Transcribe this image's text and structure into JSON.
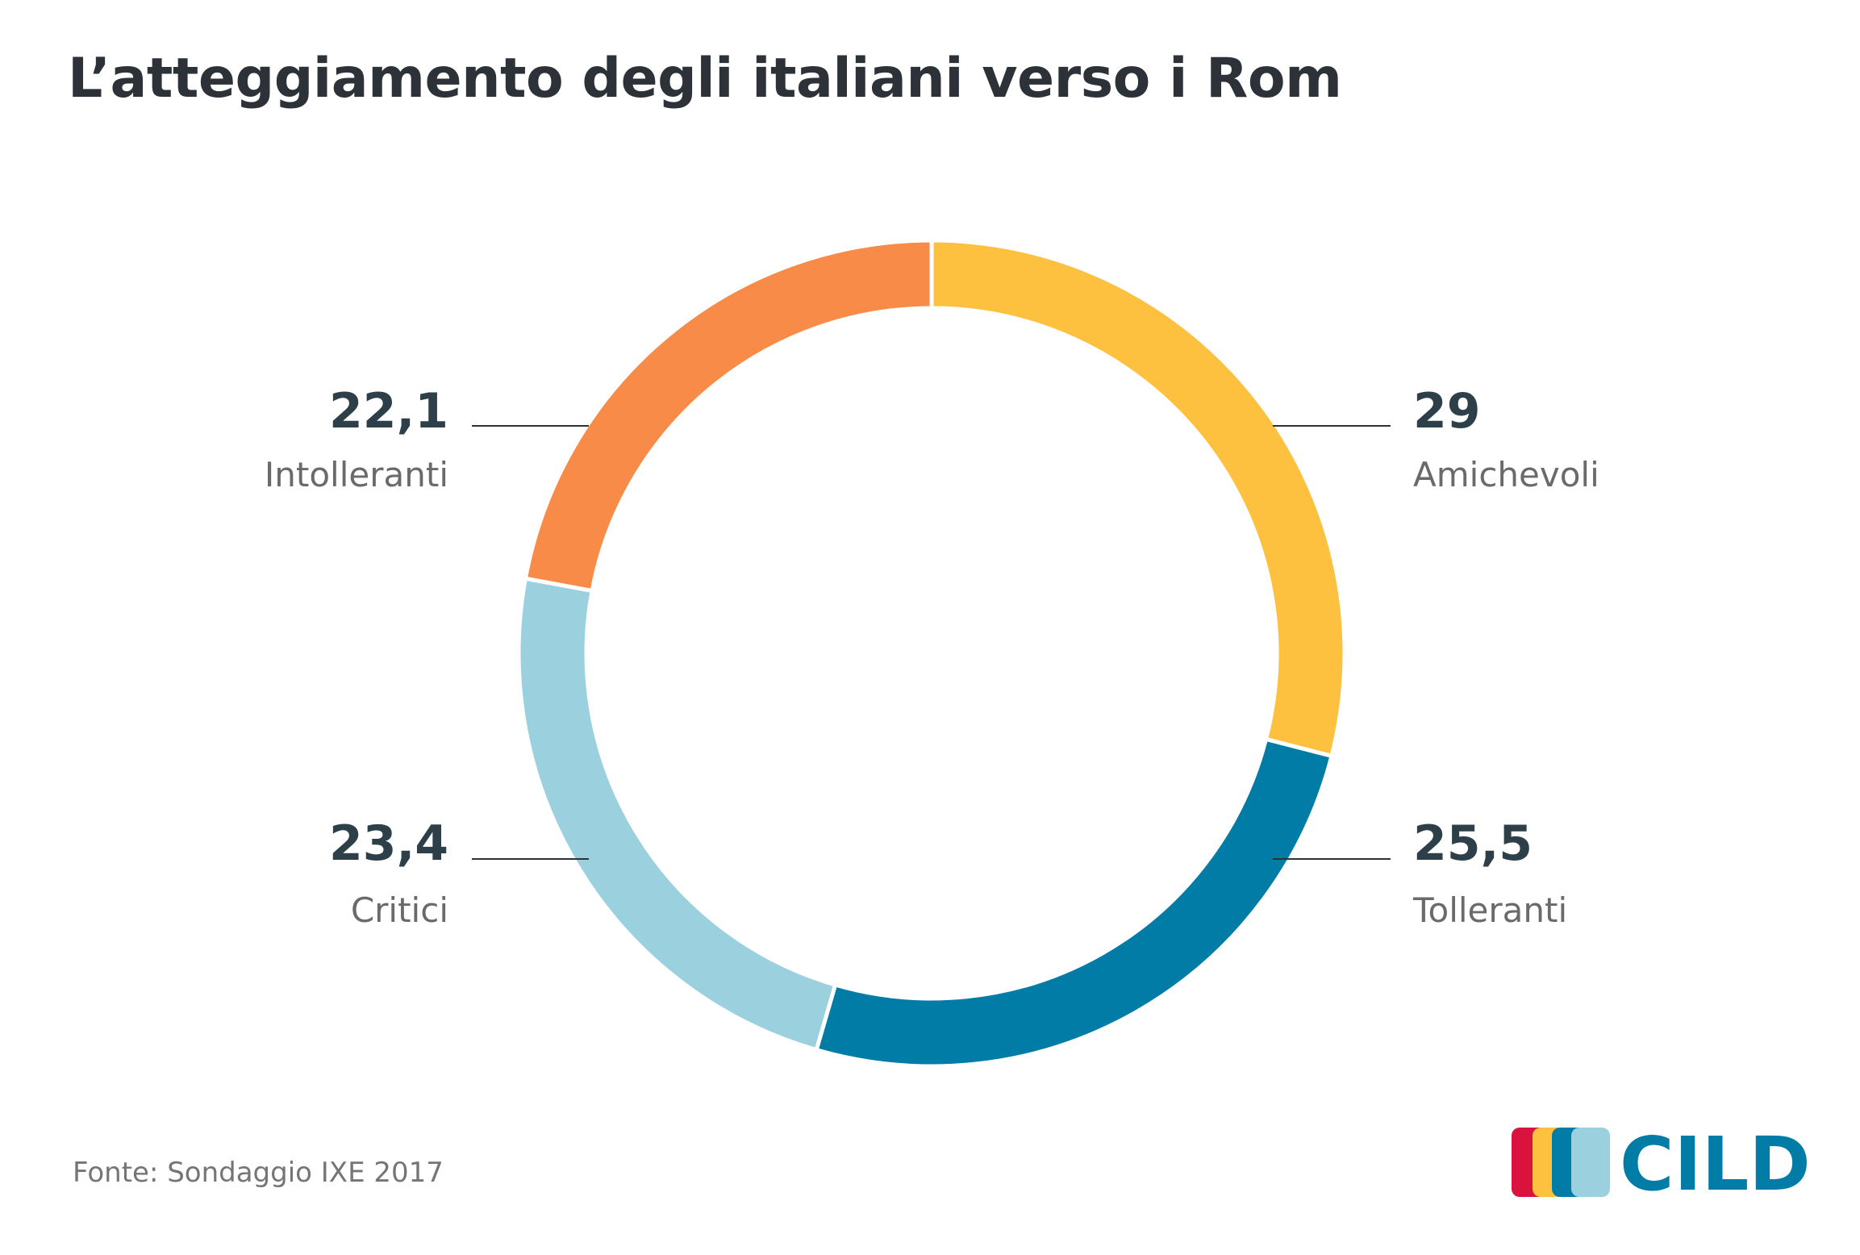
{
  "title": "L’atteggiamento degli italiani verso i Rom",
  "source": "Fonte: Sondaggio IXE 2017",
  "logo_text": "CILD",
  "colors": {
    "text_dark": "#2d3f48",
    "text_label": "#6a6a6a",
    "leader": "#2d3238",
    "logo_blue": "#007ca7"
  },
  "chart_data": {
    "type": "pie",
    "donut": true,
    "series": [
      {
        "name": "Amichevoli",
        "value": 29,
        "label": "29",
        "color": "#fec03f"
      },
      {
        "name": "Tolleranti",
        "value": 25.5,
        "label": "25,5",
        "color": "#007ca7"
      },
      {
        "name": "Critici",
        "value": 23.4,
        "label": "23,4",
        "color": "#9bd0de"
      },
      {
        "name": "Intolleranti",
        "value": 22.1,
        "label": "22,1",
        "color": "#f78b47"
      }
    ]
  }
}
